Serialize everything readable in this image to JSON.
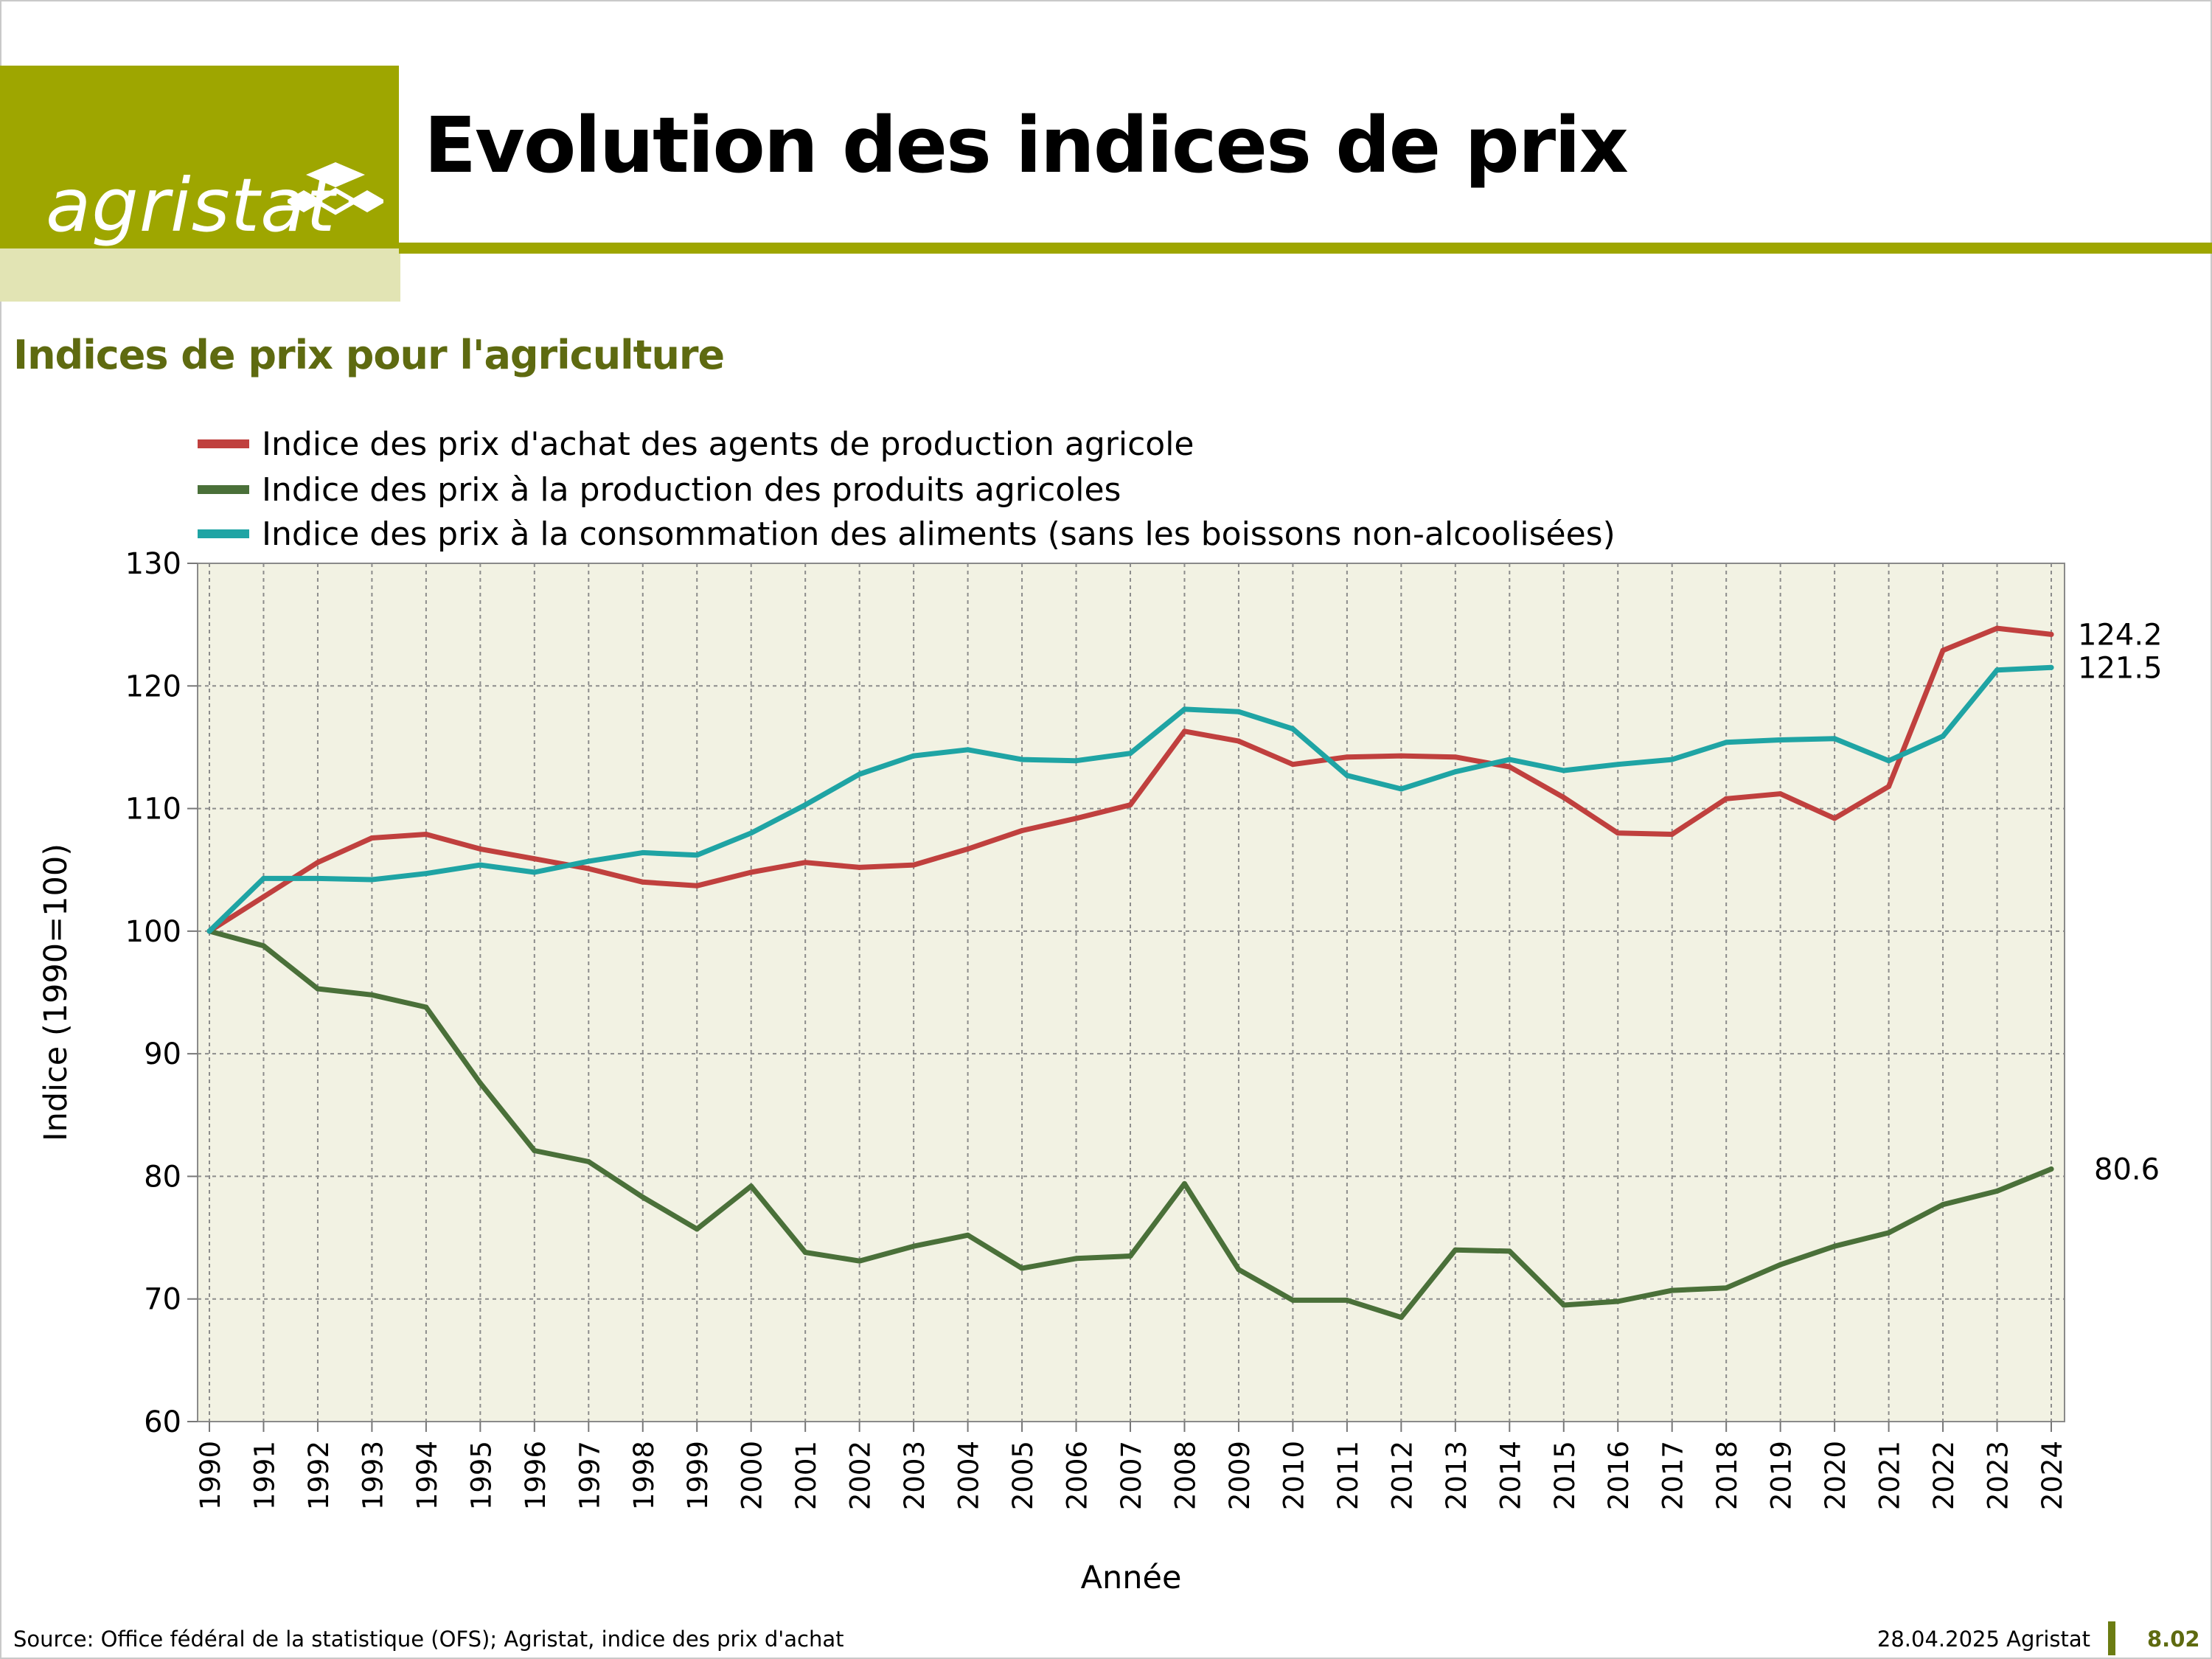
{
  "header": {
    "logo_text": "agristat",
    "title": "Evolution des indices de prix"
  },
  "subtitle": "Indices de prix pour l'agriculture",
  "footer": {
    "source": "Source: Office fédéral de la statistique (OFS); Agristat, indice des prix d'achat",
    "date": "28.04.2025 Agristat",
    "page": "8.02"
  },
  "colors": {
    "brand": "#9ea600",
    "brand_light": "#e2e4b4",
    "plot_bg": "#f2f2e3",
    "subtitle": "#5e6a10"
  },
  "chart_data": {
    "type": "line",
    "xlabel": "Année",
    "ylabel": "Indice (1990=100)",
    "ylim": [
      60,
      130
    ],
    "yticks": [
      60,
      70,
      80,
      90,
      100,
      110,
      120,
      130
    ],
    "grid": true,
    "legend_position": "top-left",
    "x": [
      "1990",
      "1991",
      "1992",
      "1993",
      "1994",
      "1995",
      "1996",
      "1997",
      "1998",
      "1999",
      "2000",
      "2001",
      "2002",
      "2003",
      "2004",
      "2005",
      "2006",
      "2007",
      "2008",
      "2009",
      "2010",
      "2011",
      "2012",
      "2013",
      "2014",
      "2015",
      "2016",
      "2017",
      "2018",
      "2019",
      "2020",
      "2021",
      "2022",
      "2023",
      "2024"
    ],
    "series": [
      {
        "name": "Indice des prix d'achat des agents de production agricole",
        "color": "#c0403e",
        "end_label": "124.2",
        "values": [
          100,
          102.8,
          105.6,
          107.6,
          107.9,
          106.7,
          105.9,
          105.1,
          104.0,
          103.7,
          104.8,
          105.6,
          105.2,
          105.4,
          106.7,
          108.2,
          109.2,
          110.3,
          116.3,
          115.5,
          113.6,
          114.2,
          114.3,
          114.2,
          113.4,
          110.9,
          108.0,
          107.9,
          110.8,
          111.2,
          109.2,
          111.8,
          122.9,
          124.7,
          124.2
        ]
      },
      {
        "name": "Indice des prix à la production des produits agricoles",
        "color": "#4a7039",
        "end_label": "80.6",
        "values": [
          100,
          98.8,
          95.3,
          94.8,
          93.8,
          87.6,
          82.1,
          81.2,
          78.3,
          75.7,
          79.2,
          73.8,
          73.1,
          74.3,
          75.2,
          72.5,
          73.3,
          73.5,
          79.4,
          72.4,
          69.9,
          69.9,
          68.5,
          74.0,
          73.9,
          69.5,
          69.8,
          70.7,
          70.9,
          72.8,
          74.3,
          75.4,
          77.7,
          78.8,
          80.6
        ]
      },
      {
        "name": "Indice des prix à la consommation des aliments (sans les boissons non-alcoolisées)",
        "color": "#1fa4a4",
        "end_label": "121.5",
        "values": [
          100,
          104.3,
          104.3,
          104.2,
          104.7,
          105.4,
          104.8,
          105.7,
          106.4,
          106.2,
          108.0,
          110.3,
          112.8,
          114.3,
          114.8,
          114.0,
          113.9,
          114.5,
          118.1,
          117.9,
          116.5,
          112.7,
          111.6,
          113.0,
          114.0,
          113.1,
          113.6,
          114.0,
          115.4,
          115.6,
          115.7,
          113.9,
          115.9,
          121.3,
          121.5
        ]
      }
    ]
  }
}
